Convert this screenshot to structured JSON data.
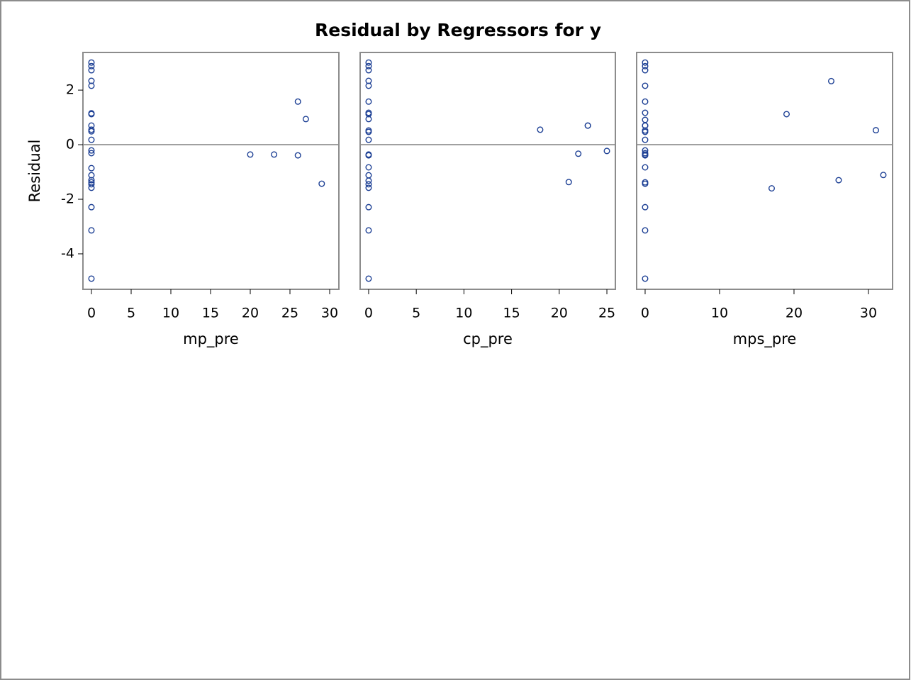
{
  "title": "Residual by Regressors for y",
  "chart_data": [
    {
      "type": "scatter",
      "xlabel": "mp_pre",
      "ylabel": "Residual",
      "color": "#1c3f94",
      "reference_line": 0,
      "xlim": [
        -1.07,
        31.16
      ],
      "xticks": [
        0,
        5,
        10,
        15,
        20,
        25,
        30
      ],
      "ylim": [
        -5.3,
        3.38
      ],
      "yticks": [
        -4,
        -2,
        0,
        2
      ],
      "x": [
        0,
        0,
        0,
        0,
        0,
        0,
        0,
        0,
        0,
        0,
        0,
        0,
        0,
        0,
        0,
        0,
        0,
        0,
        0,
        0,
        0,
        0,
        20,
        23,
        26,
        26,
        27,
        29
      ],
      "y": [
        3.01,
        2.88,
        2.73,
        2.34,
        2.16,
        1.15,
        1.12,
        0.7,
        0.55,
        0.49,
        0.18,
        -0.21,
        -0.31,
        -0.86,
        -1.12,
        -1.3,
        -1.38,
        -1.45,
        -1.58,
        -2.29,
        -3.14,
        -4.91,
        -0.36,
        -0.36,
        1.58,
        -0.39,
        0.94,
        -1.43
      ]
    },
    {
      "type": "scatter",
      "xlabel": "cp_pre",
      "color": "#1c3f94",
      "reference_line": 0,
      "xlim": [
        -0.89,
        25.89
      ],
      "xticks": [
        0,
        5,
        10,
        15,
        20,
        25
      ],
      "ylim": [
        -5.3,
        3.38
      ],
      "yticks": [
        -4,
        -2,
        0,
        2
      ],
      "x": [
        0,
        0,
        0,
        0,
        0,
        0,
        0,
        0,
        0,
        0,
        0,
        0,
        0,
        0,
        0,
        0,
        0,
        0,
        0,
        0,
        0,
        0,
        18,
        21,
        22,
        23,
        23,
        25
      ],
      "y": [
        3.01,
        2.88,
        2.73,
        2.34,
        2.16,
        1.58,
        1.17,
        1.12,
        0.94,
        0.52,
        0.47,
        0.18,
        -0.36,
        -0.39,
        -0.83,
        -1.12,
        -1.32,
        -1.45,
        -1.58,
        -2.29,
        -3.14,
        -4.91,
        0.55,
        -1.37,
        -0.33,
        0.7,
        0.7,
        -0.23
      ]
    },
    {
      "type": "scatter",
      "xlabel": "mps_pre",
      "color": "#1c3f94",
      "reference_line": 0,
      "xlim": [
        -1.14,
        33.24
      ],
      "xticks": [
        0,
        10,
        20,
        30
      ],
      "ylim": [
        -5.3,
        3.38
      ],
      "yticks": [
        -4,
        -2,
        0,
        2
      ],
      "x": [
        0,
        0,
        0,
        0,
        0,
        0,
        0,
        0,
        0,
        0,
        0,
        0,
        0,
        0,
        0,
        0,
        0,
        0,
        0,
        0,
        0,
        0,
        17,
        19,
        25,
        26,
        31,
        32
      ],
      "y": [
        3.01,
        2.88,
        2.73,
        2.16,
        1.58,
        1.17,
        0.91,
        0.7,
        0.7,
        0.52,
        0.47,
        0.18,
        -0.21,
        -0.31,
        -0.36,
        -0.39,
        -0.83,
        -1.38,
        -1.43,
        -2.29,
        -3.14,
        -4.91,
        -1.6,
        1.12,
        2.33,
        -1.3,
        0.53,
        -1.11
      ]
    }
  ]
}
